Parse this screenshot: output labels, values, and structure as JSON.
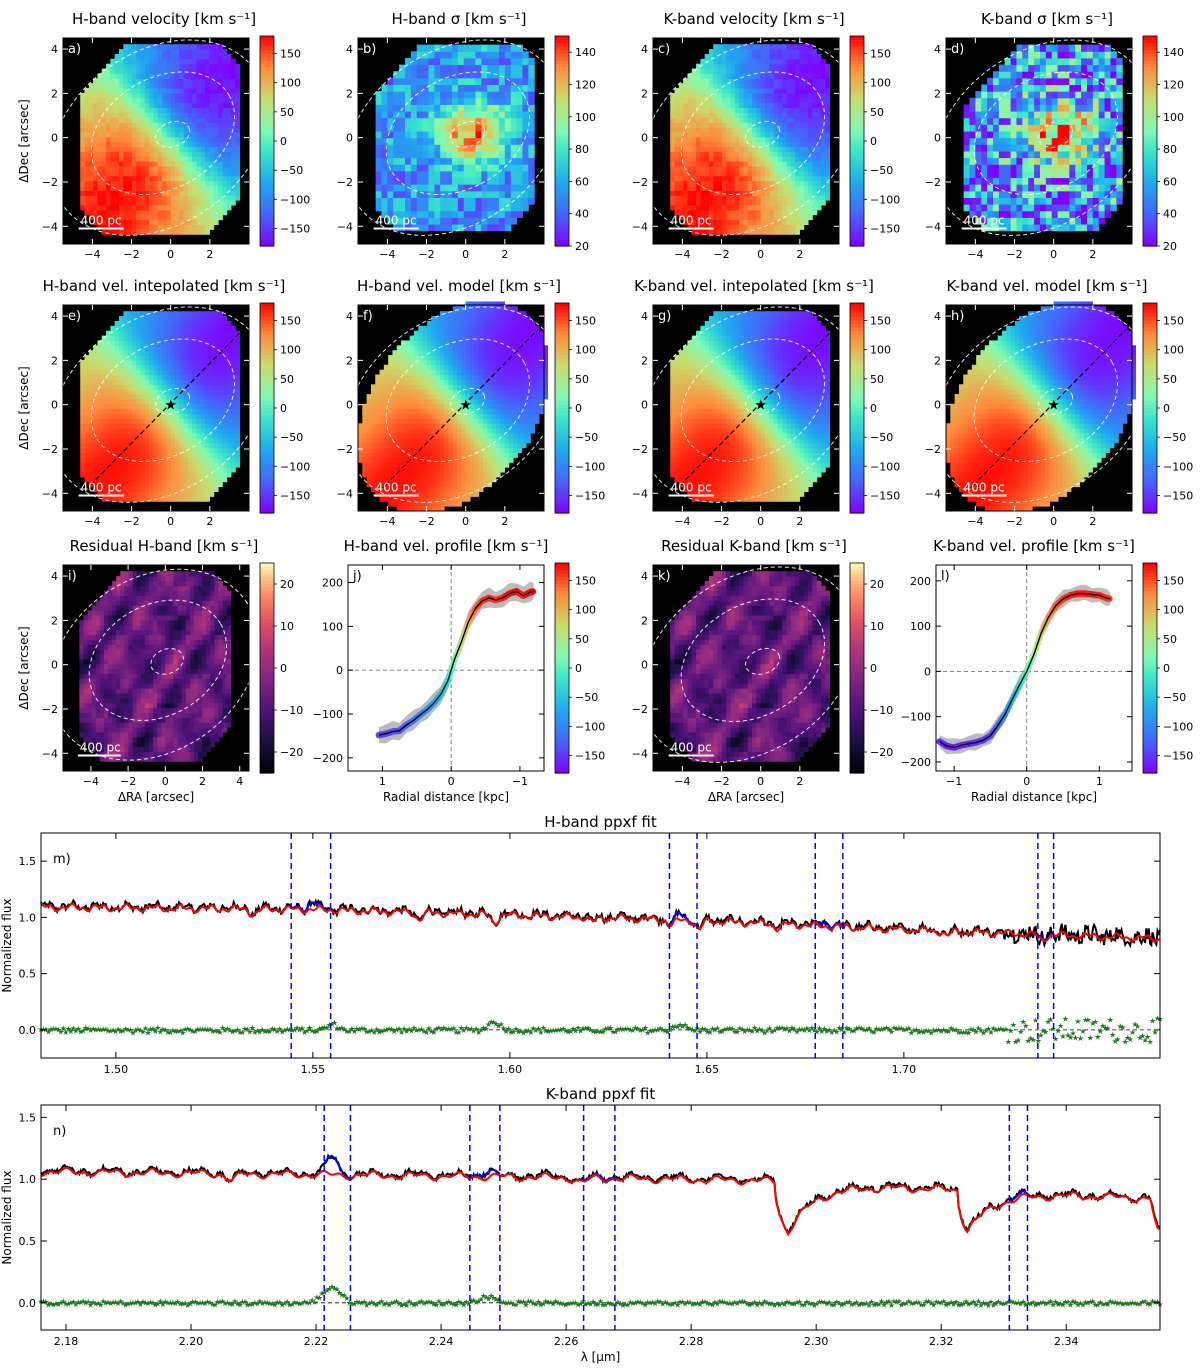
{
  "figure": {
    "common": {
      "ylabel_dec": "ΔDec [arcsec]",
      "xlabel_ra": "ΔRA [arcsec]",
      "xlabel_radial": "Radial distance [kpc]",
      "scalebar_label": "400 pc"
    }
  },
  "colors": {
    "observed": "#000000",
    "model": "#ff0000",
    "masked": "#0000ff",
    "residual": "#1f7a1f",
    "lines": "#0000ff",
    "band": "#b0b0b0"
  },
  "chart_data": [
    {
      "id": "a",
      "type": "heatmap",
      "panel_label": "a)",
      "title": "H-band velocity [km s⁻¹]",
      "map": "velocity",
      "colormap": "rainbow",
      "colorbar": {
        "ticks": [
          -150,
          -100,
          -50,
          0,
          50,
          100,
          150
        ],
        "range": [
          -180,
          180
        ]
      },
      "xticks": [
        -4,
        -2,
        0,
        2
      ],
      "yticks": [
        -4,
        -2,
        0,
        2,
        4
      ],
      "xlim": [
        -5.5,
        4.0
      ],
      "ylim": [
        -4.8,
        4.5
      ],
      "ylabel": true,
      "xlabel": false
    },
    {
      "id": "b",
      "type": "heatmap",
      "panel_label": "b)",
      "title": "H-band σ [km s⁻¹]",
      "map": "sigma",
      "colormap": "rainbow",
      "colorbar": {
        "ticks": [
          20,
          40,
          60,
          80,
          100,
          120,
          140
        ],
        "range": [
          20,
          150
        ]
      },
      "xticks": [
        -4,
        -2,
        0,
        2
      ],
      "yticks": [
        -4,
        -2,
        0,
        2,
        4
      ],
      "xlim": [
        -5.5,
        4.0
      ],
      "ylim": [
        -4.8,
        4.5
      ],
      "ylabel": false,
      "xlabel": false
    },
    {
      "id": "c",
      "type": "heatmap",
      "panel_label": "c)",
      "title": "K-band velocity [km s⁻¹]",
      "map": "velocity",
      "colormap": "rainbow",
      "colorbar": {
        "ticks": [
          -150,
          -100,
          -50,
          0,
          50,
          100,
          150
        ],
        "range": [
          -180,
          180
        ]
      },
      "xticks": [
        -4,
        -2,
        0,
        2
      ],
      "yticks": [
        -4,
        -2,
        0,
        2,
        4
      ],
      "xlim": [
        -5.5,
        4.0
      ],
      "ylim": [
        -4.8,
        4.5
      ],
      "ylabel": false,
      "xlabel": false
    },
    {
      "id": "d",
      "type": "heatmap",
      "panel_label": "d)",
      "title": "K-band σ [km s⁻¹]",
      "map": "sigma",
      "colormap": "rainbow",
      "colorbar": {
        "ticks": [
          20,
          40,
          60,
          80,
          100,
          120,
          140
        ],
        "range": [
          20,
          150
        ]
      },
      "xticks": [
        -4,
        -2,
        0,
        2
      ],
      "yticks": [
        -4,
        -2,
        0,
        2,
        4
      ],
      "xlim": [
        -5.5,
        4.0
      ],
      "ylim": [
        -4.8,
        4.5
      ],
      "ylabel": false,
      "xlabel": false
    },
    {
      "id": "e",
      "type": "heatmap",
      "panel_label": "e)",
      "title": "H-band vel. intepolated [km s⁻¹]",
      "map": "velocity",
      "colormap": "rainbow",
      "colorbar": {
        "ticks": [
          -150,
          -100,
          -50,
          0,
          50,
          100,
          150
        ],
        "range": [
          -180,
          180
        ]
      },
      "xticks": [
        -4,
        -2,
        0,
        2
      ],
      "yticks": [
        -4,
        -2,
        0,
        2,
        4
      ],
      "xlim": [
        -5.5,
        4.0
      ],
      "ylim": [
        -4.8,
        4.5
      ],
      "ylabel": true,
      "xlabel": false,
      "kinematic_axis": true
    },
    {
      "id": "f",
      "type": "heatmap",
      "panel_label": "f)",
      "title": "H-band vel. model [km s⁻¹]",
      "map": "velocity",
      "colormap": "rainbow",
      "colorbar": {
        "ticks": [
          -150,
          -100,
          -50,
          0,
          50,
          100,
          150
        ],
        "range": [
          -180,
          180
        ]
      },
      "xticks": [
        -4,
        -2,
        0,
        2
      ],
      "yticks": [
        -4,
        -2,
        0,
        2,
        4
      ],
      "xlim": [
        -5.5,
        4.0
      ],
      "ylim": [
        -4.8,
        4.5
      ],
      "ylabel": false,
      "xlabel": false,
      "kinematic_axis": true
    },
    {
      "id": "g",
      "type": "heatmap",
      "panel_label": "g)",
      "title": "K-band vel. intepolated [km s⁻¹]",
      "map": "velocity",
      "colormap": "rainbow",
      "colorbar": {
        "ticks": [
          -150,
          -100,
          -50,
          0,
          50,
          100,
          150
        ],
        "range": [
          -180,
          180
        ]
      },
      "xticks": [
        -4,
        -2,
        0,
        2
      ],
      "yticks": [
        -4,
        -2,
        0,
        2,
        4
      ],
      "xlim": [
        -5.5,
        4.0
      ],
      "ylim": [
        -4.8,
        4.5
      ],
      "ylabel": false,
      "xlabel": false,
      "kinematic_axis": true
    },
    {
      "id": "h",
      "type": "heatmap",
      "panel_label": "h)",
      "title": "K-band vel. model [km s⁻¹]",
      "map": "velocity",
      "colormap": "rainbow",
      "colorbar": {
        "ticks": [
          -150,
          -100,
          -50,
          0,
          50,
          100,
          150
        ],
        "range": [
          -180,
          180
        ]
      },
      "xticks": [
        -4,
        -2,
        0,
        2
      ],
      "yticks": [
        -4,
        -2,
        0,
        2,
        4
      ],
      "xlim": [
        -5.5,
        4.0
      ],
      "ylim": [
        -4.8,
        4.5
      ],
      "ylabel": false,
      "xlabel": false,
      "kinematic_axis": true
    },
    {
      "id": "i",
      "type": "heatmap",
      "panel_label": "i)",
      "title": "Residual H-band [km s⁻¹]",
      "map": "residual",
      "colormap": "magma",
      "colorbar": {
        "ticks": [
          -20,
          -10,
          0,
          10,
          20
        ],
        "range": [
          -25,
          25
        ]
      },
      "xticks": [
        -4,
        -2,
        0,
        2,
        4
      ],
      "yticks": [
        -4,
        -2,
        0,
        2,
        4
      ],
      "xlim": [
        -5.5,
        4.5
      ],
      "ylim": [
        -4.8,
        4.5
      ],
      "ylabel": true,
      "xlabel": true
    },
    {
      "id": "k",
      "type": "heatmap",
      "panel_label": "k)",
      "title": "Residual K-band [km s⁻¹]",
      "map": "residual",
      "colormap": "magma",
      "colorbar": {
        "ticks": [
          -20,
          -10,
          0,
          10,
          20
        ],
        "range": [
          -25,
          25
        ]
      },
      "xticks": [
        -4,
        -2,
        0,
        2
      ],
      "yticks": [
        -4,
        -2,
        0,
        2,
        4
      ],
      "xlim": [
        -5.5,
        4.0
      ],
      "ylim": [
        -4.8,
        4.5
      ],
      "ylabel": false,
      "xlabel": true
    },
    {
      "id": "j",
      "type": "line",
      "panel_label": "j)",
      "title": "H-band vel. profile [km s⁻¹]",
      "xlim": [
        1.5,
        -1.35
      ],
      "ylim": [
        -230,
        240
      ],
      "xticks": [
        1,
        0,
        -1
      ],
      "yticks": [
        -200,
        -100,
        0,
        100,
        200
      ],
      "colorbar": {
        "ticks": [
          -150,
          -100,
          -50,
          0,
          50,
          100,
          150
        ],
        "range": [
          -180,
          180
        ]
      },
      "x": [
        1.05,
        0.95,
        0.85,
        0.75,
        0.65,
        0.55,
        0.45,
        0.35,
        0.25,
        0.15,
        0.05,
        0.0,
        -0.05,
        -0.15,
        -0.25,
        -0.35,
        -0.45,
        -0.55,
        -0.65,
        -0.75,
        -0.85,
        -0.95,
        -1.05,
        -1.15,
        -1.2
      ],
      "y": [
        -148,
        -145,
        -140,
        -138,
        -125,
        -115,
        -102,
        -90,
        -75,
        -55,
        -25,
        0,
        25,
        65,
        110,
        140,
        158,
        165,
        160,
        165,
        175,
        180,
        170,
        178,
        180
      ],
      "band_halfwidth": 18
    },
    {
      "id": "l",
      "type": "line",
      "panel_label": "l)",
      "title": "K-band vel. profile [km s⁻¹]",
      "xlim": [
        -1.25,
        1.45
      ],
      "ylim": [
        -220,
        235
      ],
      "xticks": [
        -1,
        0,
        1
      ],
      "yticks": [
        -200,
        -100,
        0,
        100,
        200
      ],
      "colorbar": {
        "ticks": [
          -150,
          -100,
          -50,
          0,
          50,
          100,
          150
        ],
        "range": [
          -180,
          180
        ]
      },
      "x": [
        -1.2,
        -1.1,
        -1.0,
        -0.9,
        -0.8,
        -0.7,
        -0.6,
        -0.5,
        -0.4,
        -0.3,
        -0.2,
        -0.1,
        0.0,
        0.1,
        0.2,
        0.3,
        0.4,
        0.5,
        0.6,
        0.7,
        0.8,
        0.9,
        1.0,
        1.1,
        1.15
      ],
      "y": [
        -155,
        -165,
        -168,
        -163,
        -160,
        -157,
        -152,
        -142,
        -120,
        -95,
        -62,
        -30,
        0,
        38,
        85,
        120,
        145,
        160,
        168,
        172,
        172,
        170,
        168,
        162,
        160
      ],
      "band_halfwidth": 14
    },
    {
      "id": "m",
      "type": "line",
      "panel_label": "m)",
      "title": "H-band ppxf fit",
      "xlabel": "",
      "ylabel": "Normalized flux",
      "xlim": [
        1.481,
        1.765
      ],
      "ylim": [
        -0.25,
        1.75
      ],
      "xticks": [
        1.5,
        1.55,
        1.6,
        1.65,
        1.7
      ],
      "xtick_labels": [
        "1.50",
        "1.55",
        "1.60",
        "1.65",
        "1.70"
      ],
      "yticks": [
        0.0,
        0.5,
        1.0,
        1.5
      ],
      "ytick_labels": [
        "0.0",
        "0.5",
        "1.0",
        "1.5"
      ],
      "continuum": [
        [
          1.481,
          1.1
        ],
        [
          1.55,
          1.08
        ],
        [
          1.6,
          1.03
        ],
        [
          1.65,
          0.98
        ],
        [
          1.7,
          0.9
        ],
        [
          1.765,
          0.82
        ]
      ],
      "dips": [
        [
          1.535,
          0.05
        ],
        [
          1.577,
          0.06
        ],
        [
          1.596,
          0.07
        ],
        [
          1.621,
          0.04
        ],
        [
          1.641,
          0.05
        ],
        [
          1.648,
          0.08
        ],
        [
          1.668,
          0.04
        ],
        [
          1.711,
          0.04
        ],
        [
          1.735,
          0.05
        ]
      ],
      "masked_regions": [
        [
          1.5445,
          1.5545
        ],
        [
          1.6405,
          1.6475
        ],
        [
          1.6775,
          1.6845
        ],
        [
          1.734,
          1.738
        ]
      ],
      "masked_bumps": [
        [
          1.55,
          0.06
        ],
        [
          1.643,
          0.05
        ],
        [
          1.68,
          0.03
        ]
      ],
      "noise_amplitude": 0.025,
      "residual_spike_at": [
        [
          1.555,
          0.05
        ],
        [
          1.596,
          0.08
        ],
        [
          1.643,
          0.05
        ]
      ]
    },
    {
      "id": "n",
      "type": "line",
      "panel_label": "n)",
      "title": "K-band ppxf fit",
      "xlabel": "λ [μm]",
      "ylabel": "Normalized flux",
      "xlim": [
        2.176,
        2.355
      ],
      "ylim": [
        -0.22,
        1.6
      ],
      "xticks": [
        2.18,
        2.2,
        2.22,
        2.24,
        2.26,
        2.28,
        2.3,
        2.32,
        2.34
      ],
      "xtick_labels": [
        "2.18",
        "2.20",
        "2.22",
        "2.24",
        "2.26",
        "2.28",
        "2.30",
        "2.32",
        "2.34"
      ],
      "yticks": [
        0.0,
        0.5,
        1.0,
        1.5
      ],
      "ytick_labels": [
        "0.0",
        "0.5",
        "1.0",
        "1.5"
      ],
      "continuum": [
        [
          2.176,
          1.07
        ],
        [
          2.25,
          1.03
        ],
        [
          2.29,
          1.0
        ],
        [
          2.355,
          0.85
        ]
      ],
      "bandheads": [
        [
          2.2935,
          0.32,
          0.002
        ],
        [
          2.3227,
          0.25,
          0.0015
        ],
        [
          2.3535,
          0.28,
          0.0012
        ]
      ],
      "bandhead_recovery": [
        [
          2.2935,
          0.12,
          0.006
        ],
        [
          2.3227,
          0.1,
          0.006
        ]
      ],
      "dips": [
        [
          2.2065,
          0.05
        ],
        [
          2.2625,
          0.04
        ]
      ],
      "masked_regions": [
        [
          2.2213,
          2.2255
        ],
        [
          2.2446,
          2.2494
        ],
        [
          2.2628,
          2.2678
        ],
        [
          2.3309,
          2.3338
        ]
      ],
      "masked_bumps": [
        [
          2.2225,
          0.14
        ],
        [
          2.2475,
          0.04
        ],
        [
          2.3322,
          0.02
        ]
      ],
      "noise_amplitude": 0.018,
      "residual_spike_at": [
        [
          2.2225,
          0.13
        ],
        [
          2.2475,
          0.05
        ]
      ]
    }
  ]
}
